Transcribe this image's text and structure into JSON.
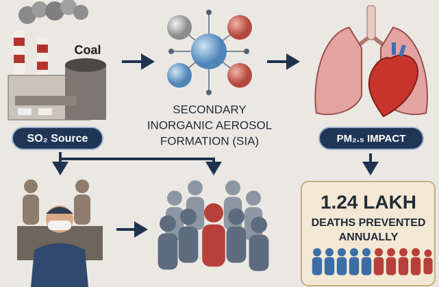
{
  "source": {
    "label": "Coal",
    "badge": "SO₂ Source"
  },
  "formation": {
    "lines": [
      "SECONDARY",
      "INORGANIC AEROSOL",
      "FORMATION (SIA)"
    ]
  },
  "impact": {
    "badge": "PM₂.₅ IMPACT"
  },
  "result": {
    "value": "1.24 LAKH",
    "lines": [
      "DEATHS PREVENTED",
      "ANNUALLY"
    ]
  }
}
